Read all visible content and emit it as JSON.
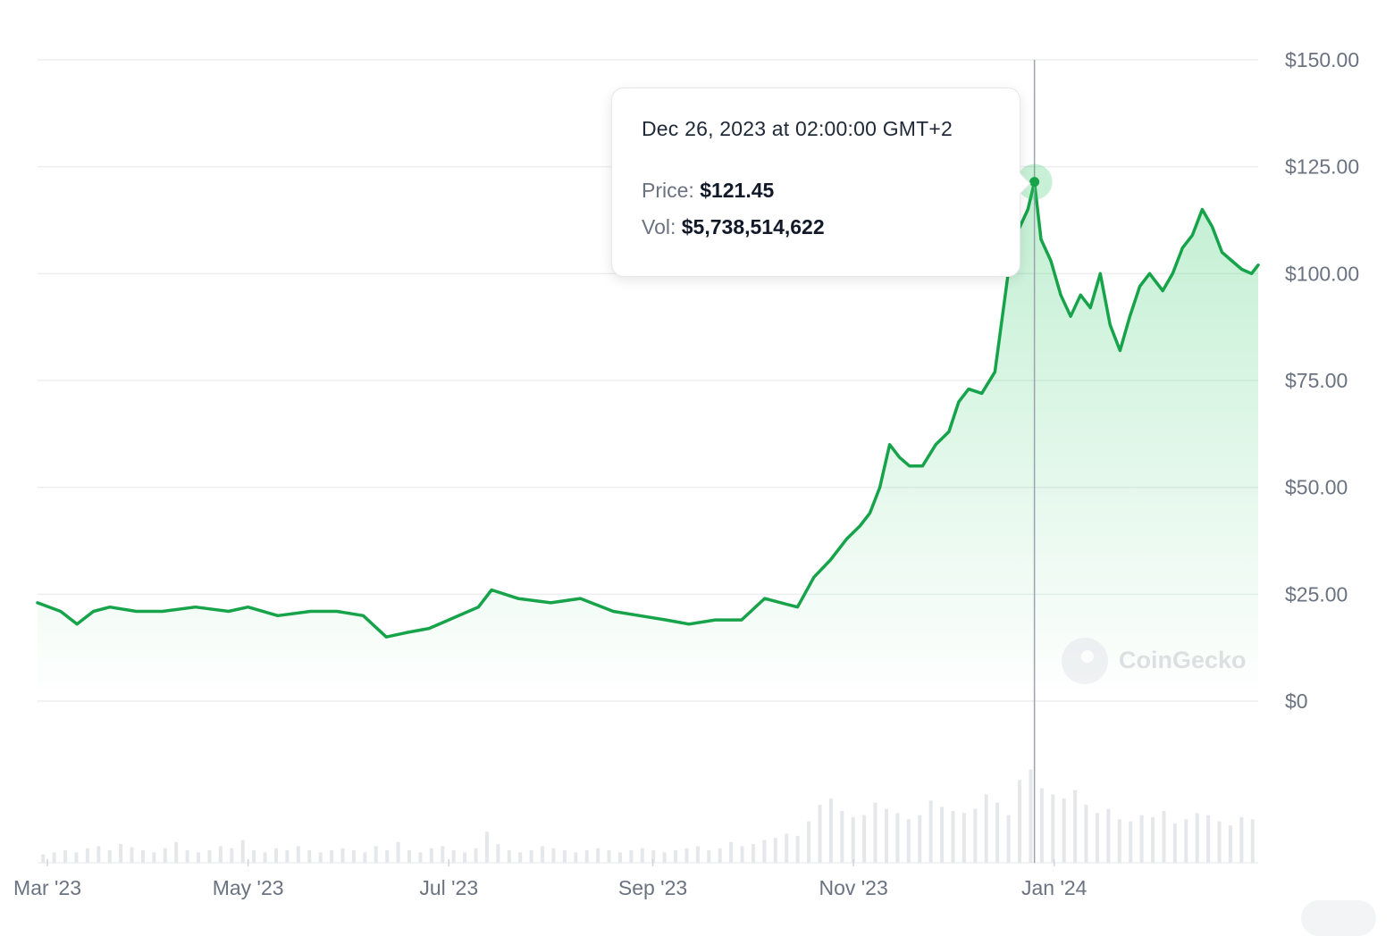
{
  "chart_data": {
    "type": "area",
    "title": "",
    "xlabel": "",
    "ylabel": "",
    "ylim": [
      0,
      150
    ],
    "y_ticks": [
      "$150.00",
      "$125.00",
      "$100.00",
      "$75.00",
      "$50.00",
      "$25.00",
      "$0"
    ],
    "y_tick_values": [
      150,
      125,
      100,
      75,
      50,
      25,
      0
    ],
    "x_ticks": [
      "Mar '23",
      "May '23",
      "Jul '23",
      "Sep '23",
      "Nov '23",
      "Jan '24"
    ],
    "x_tick_dates": [
      "2023-03-01",
      "2023-05-01",
      "2023-07-01",
      "2023-09-01",
      "2023-11-01",
      "2024-01-01"
    ],
    "x_range": [
      "2023-02-26",
      "2024-03-03"
    ],
    "grid": true,
    "line_color": "#16a34a",
    "area_color": "#22c55e",
    "series": [
      {
        "x": [
          "2023-02-26",
          "2023-03-05",
          "2023-03-10",
          "2023-03-15",
          "2023-03-20",
          "2023-03-28",
          "2023-04-05",
          "2023-04-15",
          "2023-04-25",
          "2023-05-01",
          "2023-05-10",
          "2023-05-20",
          "2023-05-28",
          "2023-06-05",
          "2023-06-12",
          "2023-06-18",
          "2023-06-25",
          "2023-07-01",
          "2023-07-10",
          "2023-07-14",
          "2023-07-22",
          "2023-08-01",
          "2023-08-10",
          "2023-08-20",
          "2023-08-28",
          "2023-09-05",
          "2023-09-12",
          "2023-09-20",
          "2023-09-28",
          "2023-10-05",
          "2023-10-10",
          "2023-10-15",
          "2023-10-20",
          "2023-10-25",
          "2023-10-30",
          "2023-11-03",
          "2023-11-06",
          "2023-11-09",
          "2023-11-12",
          "2023-11-15",
          "2023-11-18",
          "2023-11-22",
          "2023-11-26",
          "2023-11-30",
          "2023-12-03",
          "2023-12-06",
          "2023-12-10",
          "2023-12-14",
          "2023-12-18",
          "2023-12-21",
          "2023-12-24",
          "2023-12-26",
          "2023-12-28",
          "2023-12-31",
          "2024-01-03",
          "2024-01-06",
          "2024-01-09",
          "2024-01-12",
          "2024-01-15",
          "2024-01-18",
          "2024-01-21",
          "2024-01-24",
          "2024-01-27",
          "2024-01-30",
          "2024-02-03",
          "2024-02-06",
          "2024-02-09",
          "2024-02-12",
          "2024-02-15",
          "2024-02-18",
          "2024-02-21",
          "2024-02-24",
          "2024-02-27",
          "2024-03-01",
          "2024-03-03"
        ],
        "y": [
          23,
          21,
          18,
          21,
          22,
          21,
          21,
          22,
          21,
          22,
          20,
          21,
          21,
          20,
          15,
          16,
          17,
          19,
          22,
          26,
          24,
          23,
          24,
          21,
          20,
          19,
          18,
          19,
          19,
          24,
          23,
          22,
          29,
          33,
          38,
          41,
          44,
          50,
          60,
          57,
          55,
          55,
          60,
          63,
          70,
          73,
          72,
          77,
          100,
          110,
          115,
          121.45,
          108,
          103,
          95,
          90,
          95,
          92,
          100,
          88,
          82,
          90,
          97,
          100,
          96,
          100,
          106,
          109,
          115,
          111,
          105,
          103,
          101,
          100,
          102
        ]
      }
    ],
    "volume": {
      "x_range": [
        "2023-02-26",
        "2024-03-03"
      ],
      "values_relative": [
        0.08,
        0.1,
        0.12,
        0.1,
        0.14,
        0.16,
        0.12,
        0.18,
        0.15,
        0.12,
        0.1,
        0.14,
        0.2,
        0.12,
        0.1,
        0.12,
        0.16,
        0.14,
        0.22,
        0.12,
        0.1,
        0.14,
        0.12,
        0.16,
        0.12,
        0.1,
        0.12,
        0.14,
        0.12,
        0.1,
        0.16,
        0.12,
        0.2,
        0.12,
        0.1,
        0.14,
        0.16,
        0.12,
        0.1,
        0.14,
        0.3,
        0.18,
        0.12,
        0.1,
        0.12,
        0.16,
        0.14,
        0.12,
        0.1,
        0.12,
        0.14,
        0.12,
        0.1,
        0.12,
        0.14,
        0.12,
        0.1,
        0.12,
        0.14,
        0.16,
        0.12,
        0.14,
        0.2,
        0.16,
        0.18,
        0.22,
        0.24,
        0.28,
        0.26,
        0.4,
        0.56,
        0.62,
        0.5,
        0.44,
        0.46,
        0.58,
        0.52,
        0.48,
        0.42,
        0.46,
        0.6,
        0.54,
        0.5,
        0.48,
        0.52,
        0.66,
        0.58,
        0.46,
        0.8,
        0.9,
        0.72,
        0.66,
        0.62,
        0.7,
        0.56,
        0.48,
        0.52,
        0.42,
        0.4,
        0.46,
        0.44,
        0.5,
        0.38,
        0.42,
        0.48,
        0.46,
        0.4,
        0.36,
        0.44,
        0.42
      ]
    }
  },
  "tooltip": {
    "date": "Dec 26, 2023 at 02:00:00 GMT+2",
    "price_label": "Price:",
    "price_value": "$121.45",
    "vol_label": "Vol:",
    "vol_value": "$5,738,514,622",
    "date_value": "2023-12-26",
    "price": 121.45
  },
  "watermark": {
    "text": "CoinGecko"
  }
}
